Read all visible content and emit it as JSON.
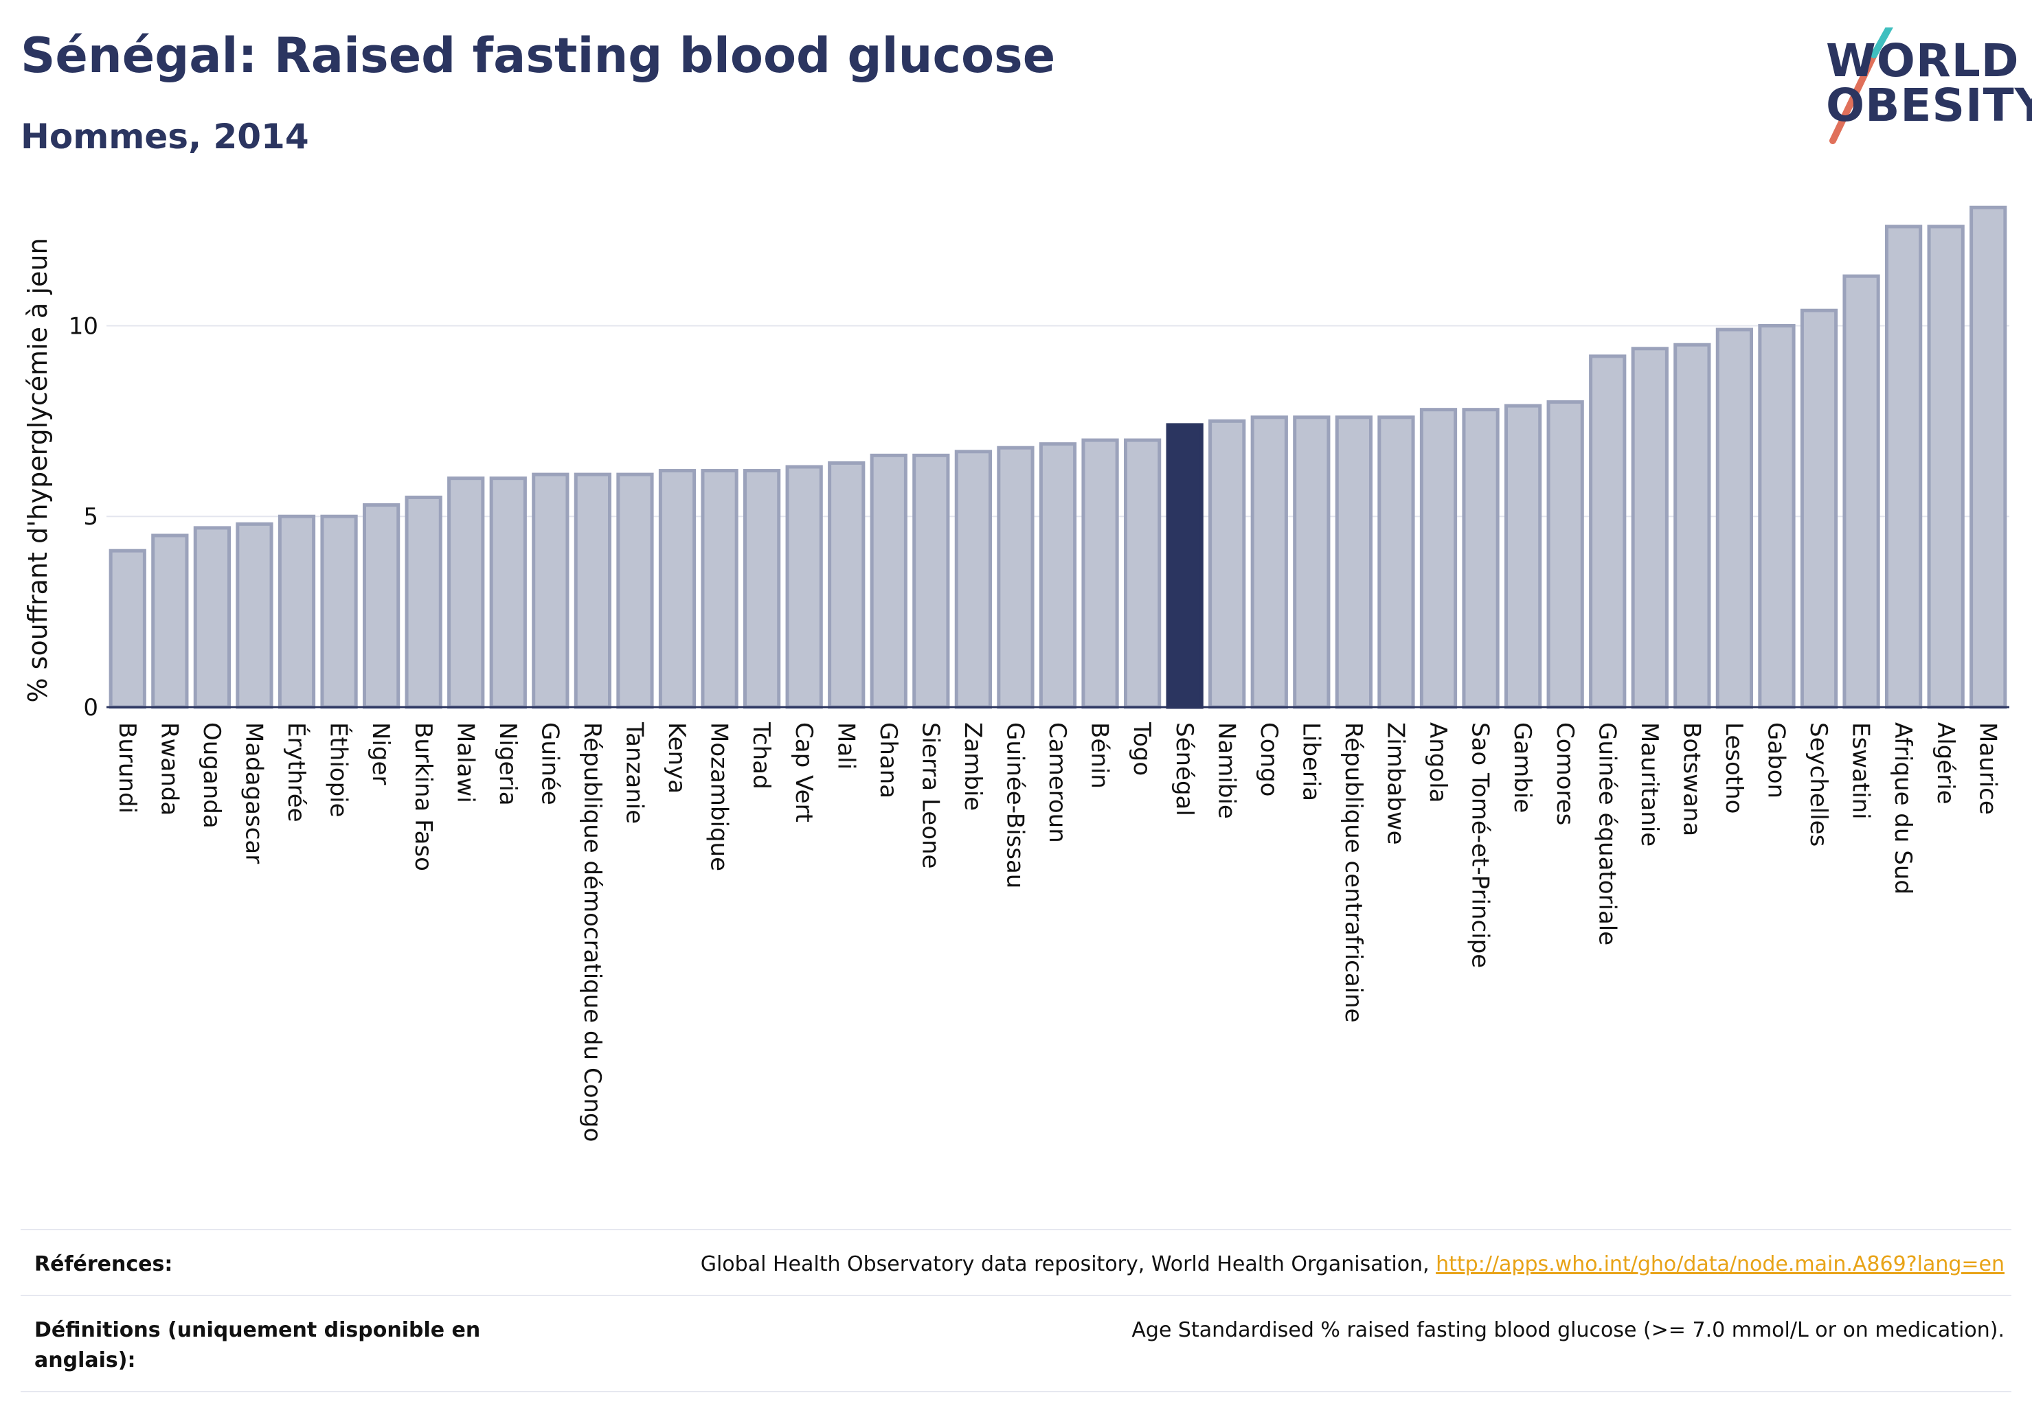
{
  "header": {
    "title": "Sénégal: Raised fasting blood glucose",
    "subtitle": "Hommes, 2014"
  },
  "logo": {
    "line1": "WORLD",
    "line2": "OBESITY"
  },
  "chart_data": {
    "type": "bar",
    "ylabel": "% souffrant d'hyperglycémie à jeun",
    "xlabel": "",
    "ylim": [
      0,
      13.5
    ],
    "yticks": [
      0,
      5,
      10
    ],
    "grid": "horizontal",
    "highlight": "Sénégal",
    "colors": {
      "bar": "#bec3d2",
      "bar_edge": "#9ba2bb",
      "highlight": "#2b3560"
    },
    "categories": [
      "Burundi",
      "Rwanda",
      "Ouganda",
      "Madagascar",
      "Érythrée",
      "Éthiopie",
      "Niger",
      "Burkina Faso",
      "Malawi",
      "Nigeria",
      "Guinée",
      "République démocratique du Congo",
      "Tanzanie",
      "Kenya",
      "Mozambique",
      "Tchad",
      "Cap Vert",
      "Mali",
      "Ghana",
      "Sierra Leone",
      "Zambie",
      "Guinée-Bissau",
      "Cameroun",
      "Bénin",
      "Togo",
      "Sénégal",
      "Namibie",
      "Congo",
      "Liberia",
      "République centrafricaine",
      "Zimbabwe",
      "Angola",
      "Sao Tomé-et-Principe",
      "Gambie",
      "Comores",
      "Guinée équatoriale",
      "Mauritanie",
      "Botswana",
      "Lesotho",
      "Gabon",
      "Seychelles",
      "Eswatini",
      "Afrique du Sud",
      "Algérie",
      "Maurice"
    ],
    "values": [
      4.1,
      4.5,
      4.7,
      4.8,
      5.0,
      5.0,
      5.3,
      5.5,
      6.0,
      6.0,
      6.1,
      6.1,
      6.1,
      6.2,
      6.2,
      6.2,
      6.3,
      6.4,
      6.6,
      6.6,
      6.7,
      6.8,
      6.9,
      7.0,
      7.0,
      7.4,
      7.5,
      7.6,
      7.6,
      7.6,
      7.6,
      7.8,
      7.8,
      7.9,
      8.0,
      9.2,
      9.4,
      9.5,
      9.9,
      10.0,
      10.4,
      11.3,
      12.6,
      12.6,
      13.1
    ]
  },
  "footer": {
    "references_label": "Références:",
    "references_text": "Global Health Observatory data repository, World Health Organisation, ",
    "references_link": "http://apps.who.int/gho/data/node.main.A869?lang=en",
    "definitions_label": "Définitions (uniquement disponible en anglais):",
    "definitions_text": "Age Standardised % raised fasting blood glucose (>= 7.0 mmol/L or on medication)."
  }
}
